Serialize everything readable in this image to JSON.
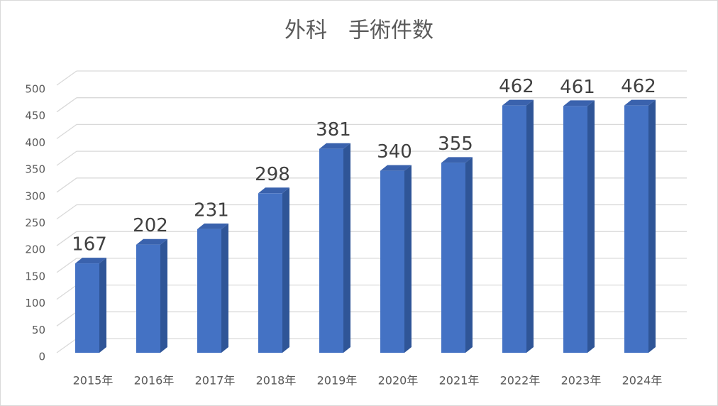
{
  "chart_data": {
    "type": "bar3d",
    "title": "外科　手術件数",
    "categories": [
      "2015年",
      "2016年",
      "2017年",
      "2018年",
      "2019年",
      "2020年",
      "2021年",
      "2022年",
      "2023年",
      "2024年"
    ],
    "values": [
      167,
      202,
      231,
      298,
      381,
      340,
      355,
      462,
      461,
      462
    ],
    "color": "#4472c4",
    "ylim": [
      0,
      500
    ],
    "yticks": [
      0,
      50,
      100,
      150,
      200,
      250,
      300,
      350,
      400,
      450,
      500
    ],
    "grid": true
  }
}
